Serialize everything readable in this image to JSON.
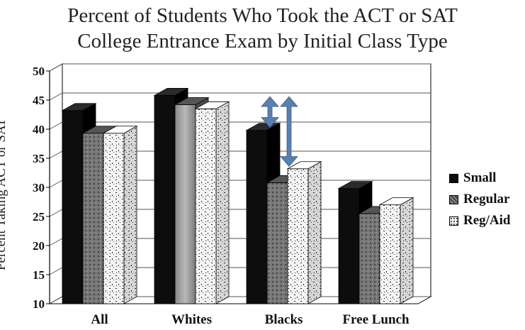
{
  "chart_data": {
    "type": "bar",
    "title": [
      "Percent of Students Who Took the ACT or SAT",
      "College Entrance Exam by Initial Class Type"
    ],
    "ylabel": "Percent Taking ACT or SAT",
    "xlabel": "",
    "ylim": [
      10,
      50
    ],
    "yticks": [
      10,
      15,
      20,
      25,
      30,
      35,
      40,
      45,
      50
    ],
    "categories": [
      "All",
      "Whites",
      "Blacks",
      "Free Lunch"
    ],
    "series": [
      {
        "name": "Small",
        "values": [
          43.2,
          45.8,
          39.8,
          29.8
        ]
      },
      {
        "name": "Regular",
        "values": [
          39.3,
          44.2,
          30.8,
          25.5
        ]
      },
      {
        "name": "Reg/Aid",
        "values": [
          39.3,
          43.5,
          33.2,
          27.0
        ]
      }
    ],
    "grid": true,
    "legend_position": "right",
    "three_d": true,
    "annotations": [
      {
        "type": "double-arrow",
        "category": "Blacks",
        "from": 40.3,
        "to": 45.6
      },
      {
        "type": "double-arrow",
        "category": "Blacks",
        "from": 33.6,
        "to": 45.6
      }
    ],
    "colors": {
      "Small": "#0d0d0d",
      "Regular": "#6e6e6e",
      "Reg/Aid": "#eeeeee",
      "arrow": "#5b7fae"
    }
  }
}
